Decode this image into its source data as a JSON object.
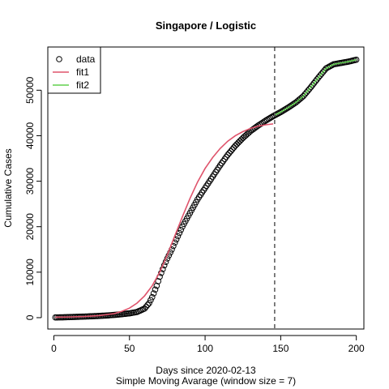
{
  "chart_data": {
    "type": "scatter",
    "title": "Singapore / Logistic",
    "xlabel": "Days since 2020-02-13",
    "xlabel2": "Simple Moving Avarage (window size = 7)",
    "ylabel": "Cumulative Cases",
    "xlim": [
      -4,
      205
    ],
    "ylim": [
      -2500,
      59500
    ],
    "xticks": [
      0,
      50,
      100,
      150,
      200
    ],
    "yticks": [
      0,
      10000,
      20000,
      30000,
      40000,
      50000
    ],
    "grid": false,
    "legend_position": "top-left",
    "vline": {
      "x": 146,
      "style": "dashed",
      "color": "#555555"
    },
    "series": [
      {
        "name": "data",
        "marker": "open-circle",
        "color": "#000000",
        "points": [
          [
            1,
            50
          ],
          [
            5,
            70
          ],
          [
            10,
            120
          ],
          [
            15,
            180
          ],
          [
            20,
            240
          ],
          [
            25,
            300
          ],
          [
            30,
            380
          ],
          [
            35,
            480
          ],
          [
            40,
            600
          ],
          [
            45,
            760
          ],
          [
            50,
            950
          ],
          [
            55,
            1250
          ],
          [
            60,
            2000
          ],
          [
            63,
            3200
          ],
          [
            65,
            4500
          ],
          [
            68,
            7000
          ],
          [
            70,
            9000
          ],
          [
            73,
            11500
          ],
          [
            75,
            13000
          ],
          [
            78,
            15000
          ],
          [
            80,
            16500
          ],
          [
            85,
            20000
          ],
          [
            90,
            23000
          ],
          [
            95,
            26000
          ],
          [
            100,
            28500
          ],
          [
            105,
            31000
          ],
          [
            110,
            33500
          ],
          [
            115,
            35800
          ],
          [
            120,
            37800
          ],
          [
            125,
            39500
          ],
          [
            130,
            41000
          ],
          [
            135,
            42200
          ],
          [
            140,
            43300
          ],
          [
            145,
            44300
          ],
          [
            150,
            45200
          ],
          [
            155,
            46200
          ],
          [
            160,
            47300
          ],
          [
            165,
            48700
          ],
          [
            170,
            50700
          ],
          [
            175,
            52800
          ],
          [
            180,
            54800
          ],
          [
            185,
            55700
          ],
          [
            190,
            56000
          ],
          [
            195,
            56300
          ],
          [
            200,
            56700
          ]
        ]
      },
      {
        "name": "fit1",
        "type": "line",
        "color": "#df536b",
        "points": [
          [
            1,
            100
          ],
          [
            10,
            150
          ],
          [
            20,
            250
          ],
          [
            30,
            450
          ],
          [
            40,
            900
          ],
          [
            45,
            1400
          ],
          [
            50,
            2100
          ],
          [
            55,
            3200
          ],
          [
            60,
            4800
          ],
          [
            65,
            7000
          ],
          [
            70,
            10000
          ],
          [
            75,
            13800
          ],
          [
            80,
            18000
          ],
          [
            85,
            22200
          ],
          [
            90,
            26200
          ],
          [
            95,
            29800
          ],
          [
            100,
            32800
          ],
          [
            105,
            35200
          ],
          [
            110,
            37200
          ],
          [
            115,
            38800
          ],
          [
            120,
            40000
          ],
          [
            125,
            40900
          ],
          [
            130,
            41600
          ],
          [
            135,
            42100
          ],
          [
            140,
            42400
          ],
          [
            145,
            42600
          ]
        ]
      },
      {
        "name": "fit2",
        "type": "line",
        "color": "#61d04f",
        "points": [
          [
            146,
            44500
          ],
          [
            150,
            45200
          ],
          [
            155,
            46200
          ],
          [
            160,
            47300
          ],
          [
            165,
            48700
          ],
          [
            170,
            50700
          ],
          [
            175,
            52800
          ],
          [
            180,
            54800
          ],
          [
            185,
            55700
          ],
          [
            190,
            56000
          ],
          [
            195,
            56300
          ],
          [
            200,
            56700
          ]
        ]
      }
    ]
  }
}
